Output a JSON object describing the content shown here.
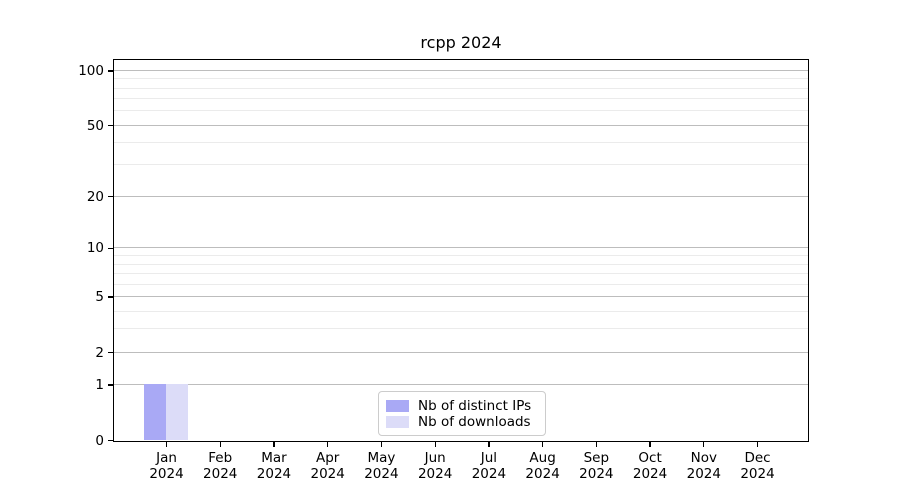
{
  "chart_data": {
    "type": "bar",
    "title": "rcpp 2024",
    "x": {
      "months": [
        "Jan",
        "Feb",
        "Mar",
        "Apr",
        "May",
        "Jun",
        "Jul",
        "Aug",
        "Sep",
        "Oct",
        "Nov",
        "Dec"
      ],
      "year": "2024"
    },
    "series": [
      {
        "name": "Nb of distinct IPs",
        "color": "#a9a9f5",
        "values": [
          1,
          0,
          0,
          0,
          0,
          0,
          0,
          0,
          0,
          0,
          0,
          0
        ]
      },
      {
        "name": "Nb of downloads",
        "color": "#dcdcf8",
        "values": [
          1,
          0,
          0,
          0,
          0,
          0,
          0,
          0,
          0,
          0,
          0,
          0
        ]
      }
    ],
    "yscale": "log1p",
    "ylim": [
      0,
      114
    ],
    "yticks": [
      0,
      1,
      2,
      5,
      10,
      20,
      50,
      100
    ],
    "minor_gridlines": [
      3,
      4,
      6,
      7,
      8,
      9,
      30,
      40,
      60,
      70,
      80,
      90
    ],
    "grid": true,
    "legend_position": "lower center",
    "colors": {
      "major_grid": "#bdbdbd",
      "minor_grid": "#ebebeb",
      "spine": "#000000",
      "background": "#ffffff"
    }
  }
}
